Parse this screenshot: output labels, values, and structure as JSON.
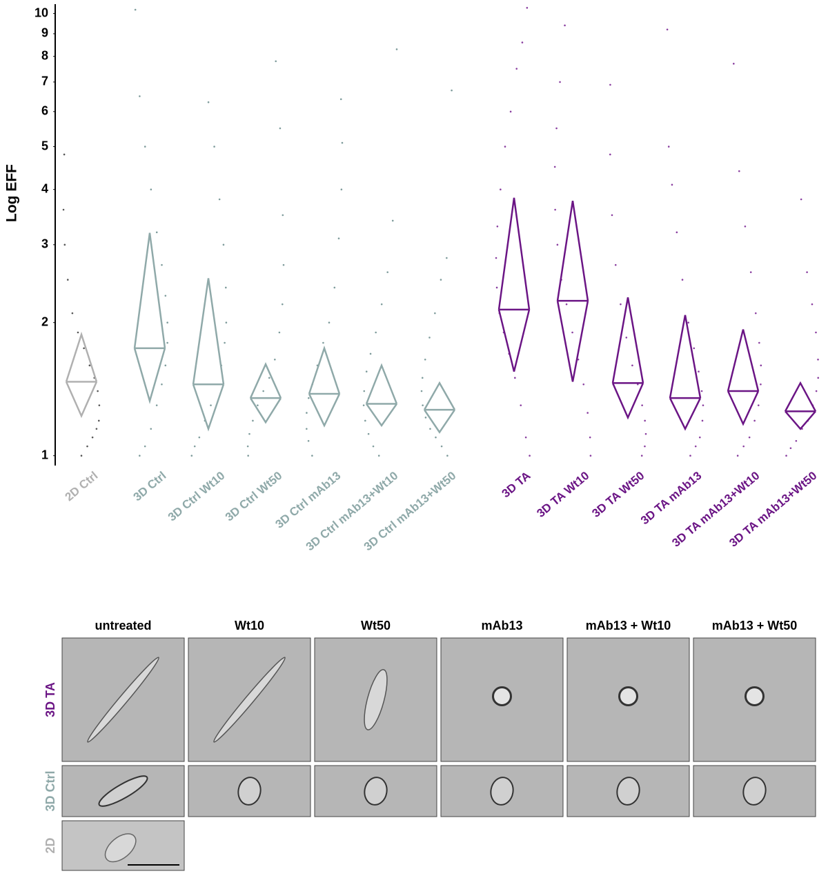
{
  "chart_data": {
    "type": "diamond",
    "y_label": "Log EFF",
    "log": true,
    "ylim": [
      0.95,
      10.5
    ],
    "yticks": [
      1,
      2,
      3,
      4,
      5,
      6,
      7,
      8,
      9,
      10
    ],
    "categories": [
      "2D Ctrl",
      "3D Ctrl",
      "3D Ctrl Wt10",
      "3D Ctrl Wt50",
      "3D Ctrl mAb13",
      "3D Ctrl mAb13+Wt10",
      "3D Ctrl mAb13+Wt50",
      "3D TA",
      "3D TA Wt10",
      "3D TA Wt50",
      "3D TA mAb13",
      "3D TA mAb13+Wt10",
      "3D TA mAb13+Wt50"
    ],
    "colors": [
      "#b0b0b0",
      "#8fa9a9",
      "#8fa9a9",
      "#8fa9a9",
      "#8fa9a9",
      "#8fa9a9",
      "#8fa9a9",
      "#6b1585",
      "#6b1585",
      "#6b1585",
      "#6b1585",
      "#6b1585",
      "#6b1585"
    ],
    "point_colors": [
      "#555555",
      "#7f9c9c",
      "#7f9c9c",
      "#7f9c9c",
      "#7f9c9c",
      "#7f9c9c",
      "#7f9c9c",
      "#8a3fa0",
      "#8a3fa0",
      "#8a3fa0",
      "#8a3fa0",
      "#8a3fa0",
      "#8a3fa0"
    ],
    "mean": [
      1.47,
      1.75,
      1.45,
      1.35,
      1.38,
      1.31,
      1.27,
      2.14,
      2.24,
      1.46,
      1.35,
      1.4,
      1.26
    ],
    "upper": [
      1.88,
      3.19,
      2.52,
      1.61,
      1.75,
      1.6,
      1.46,
      3.83,
      3.77,
      2.28,
      2.08,
      1.93,
      1.46
    ],
    "lower": [
      1.23,
      1.33,
      1.15,
      1.19,
      1.17,
      1.17,
      1.13,
      1.55,
      1.47,
      1.22,
      1.15,
      1.18,
      1.15
    ],
    "points": [
      [
        1.0,
        1.05,
        1.1,
        1.15,
        1.2,
        1.3,
        1.4,
        1.5,
        1.6,
        1.75,
        1.9,
        2.1,
        2.5,
        3.0,
        3.6,
        4.8
      ],
      [
        1.0,
        1.05,
        1.15,
        1.3,
        1.45,
        1.6,
        1.8,
        2.0,
        2.3,
        2.7,
        3.2,
        4.0,
        5.0,
        6.5,
        10.2
      ],
      [
        1.0,
        1.05,
        1.1,
        1.2,
        1.3,
        1.45,
        1.6,
        1.8,
        2.0,
        2.4,
        3.0,
        3.8,
        5.0,
        6.3
      ],
      [
        1.0,
        1.05,
        1.12,
        1.2,
        1.3,
        1.4,
        1.5,
        1.65,
        1.9,
        2.2,
        2.7,
        3.5,
        5.5,
        7.8
      ],
      [
        1.0,
        1.08,
        1.15,
        1.25,
        1.35,
        1.45,
        1.6,
        1.8,
        2.0,
        2.4,
        3.1,
        4.0,
        5.1,
        6.4
      ],
      [
        1.0,
        1.05,
        1.12,
        1.2,
        1.3,
        1.4,
        1.55,
        1.7,
        1.9,
        2.2,
        2.6,
        3.4,
        8.3
      ],
      [
        1.0,
        1.05,
        1.1,
        1.15,
        1.22,
        1.3,
        1.4,
        1.5,
        1.65,
        1.85,
        2.1,
        2.5,
        2.8,
        6.7
      ],
      [
        1.0,
        1.1,
        1.3,
        1.5,
        1.7,
        1.9,
        2.1,
        2.4,
        2.8,
        3.3,
        4.0,
        5.0,
        6.0,
        7.5,
        8.6,
        10.3
      ],
      [
        1.0,
        1.1,
        1.25,
        1.45,
        1.65,
        1.9,
        2.2,
        2.5,
        3.0,
        3.6,
        4.5,
        5.5,
        7.0,
        9.4
      ],
      [
        1.0,
        1.05,
        1.12,
        1.2,
        1.3,
        1.45,
        1.6,
        1.85,
        2.2,
        2.7,
        3.5,
        4.8,
        6.9
      ],
      [
        1.0,
        1.05,
        1.1,
        1.2,
        1.3,
        1.4,
        1.55,
        1.75,
        2.0,
        2.5,
        3.2,
        4.1,
        5.0,
        9.2
      ],
      [
        1.0,
        1.05,
        1.1,
        1.2,
        1.3,
        1.45,
        1.6,
        1.8,
        2.1,
        2.6,
        3.3,
        4.4,
        7.7
      ],
      [
        1.0,
        1.04,
        1.08,
        1.15,
        1.2,
        1.3,
        1.4,
        1.5,
        1.65,
        1.9,
        2.2,
        2.6,
        3.8
      ]
    ]
  },
  "panel": {
    "columns": [
      "untreated",
      "Wt10",
      "Wt50",
      "mAb13",
      "mAb13 + Wt10",
      "mAb13 + Wt50"
    ],
    "rows": [
      "3D TA",
      "3D Ctrl",
      "2D"
    ],
    "row_colors": [
      "#6b1585",
      "#8fa9a9",
      "#b0b0b0"
    ]
  }
}
